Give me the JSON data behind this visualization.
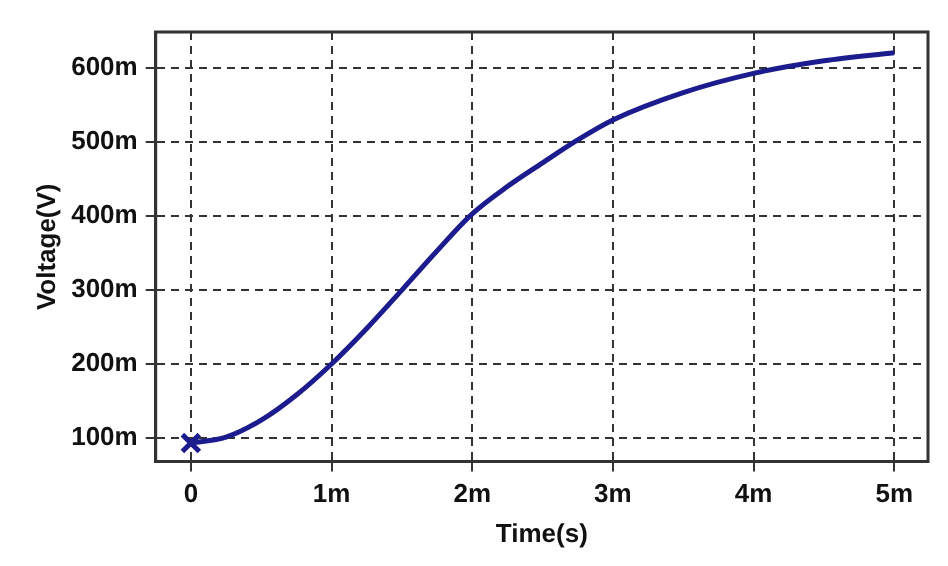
{
  "chart_data": {
    "type": "line",
    "xlabel": "Time(s)",
    "ylabel": "Voltage(V)",
    "xlim": [
      -0.25,
      5.24
    ],
    "ylim": [
      68,
      649
    ],
    "xticks": [
      {
        "value": 0,
        "label": "0"
      },
      {
        "value": 1,
        "label": "1m"
      },
      {
        "value": 2,
        "label": "2m"
      },
      {
        "value": 3,
        "label": "3m"
      },
      {
        "value": 4,
        "label": "4m"
      },
      {
        "value": 5,
        "label": "5m"
      }
    ],
    "yticks": [
      {
        "value": 100,
        "label": "100m"
      },
      {
        "value": 200,
        "label": "200m"
      },
      {
        "value": 300,
        "label": "300m"
      },
      {
        "value": 400,
        "label": "400m"
      },
      {
        "value": 500,
        "label": "500m"
      },
      {
        "value": 600,
        "label": "600m"
      }
    ],
    "grid": true,
    "series": [
      {
        "type": "line",
        "color": "#1c1c8e",
        "marker": "none",
        "line_style": "solid",
        "x": [
          0,
          0.25,
          0.5,
          0.75,
          1,
          1.25,
          1.5,
          1.75,
          2,
          2.25,
          2.5,
          2.75,
          3,
          3.5,
          4,
          4.5,
          5
        ],
        "values": [
          93,
          101,
          124,
          158,
          200,
          248,
          300,
          353,
          403,
          440,
          472,
          503,
          530,
          567,
          593,
          610,
          621
        ]
      },
      {
        "type": "scatter",
        "color": "#1c1c8e",
        "marker": "cross",
        "x": [
          0
        ],
        "values": [
          93
        ]
      }
    ]
  }
}
